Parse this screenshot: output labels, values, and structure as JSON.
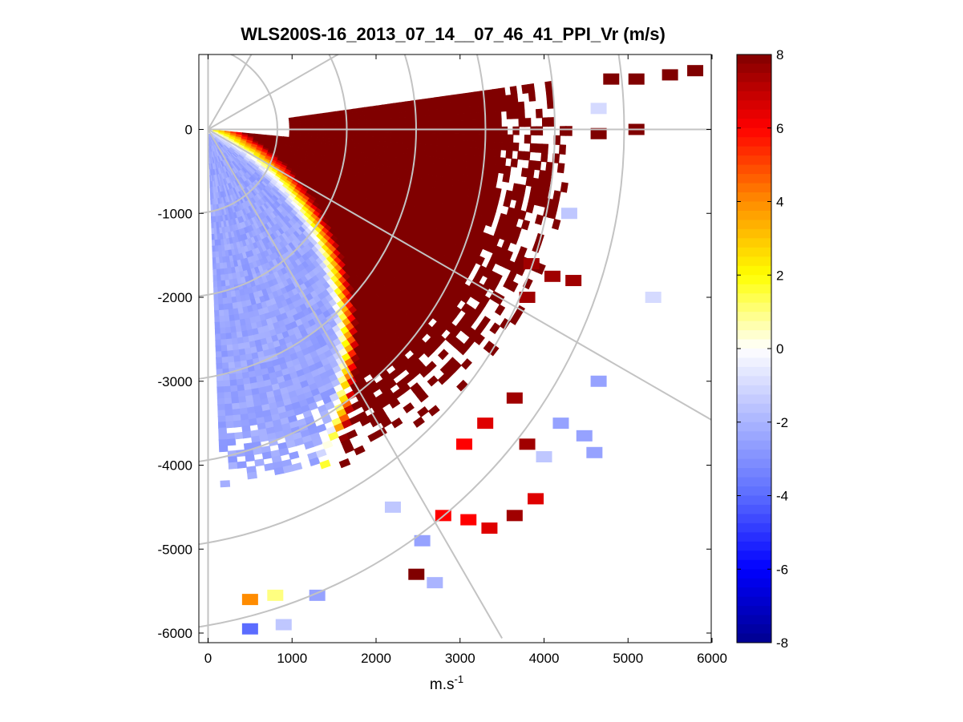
{
  "chart_data": {
    "type": "heatmap",
    "subtype": "polar-ppi-sector",
    "title": "WLS200S-16_2013_07_14__07_46_41_PPI_Vr (m/s)",
    "xlabel": "m.s",
    "xlabel_superscript": "-1",
    "ylabel": "",
    "xlim": [
      -100,
      6000
    ],
    "ylim": [
      -6100,
      1000
    ],
    "xticks": [
      0,
      1000,
      2000,
      3000,
      4000,
      5000,
      6000
    ],
    "xtick_labels": [
      "0",
      "1000",
      "2000",
      "3000",
      "4000",
      "5000",
      "6000"
    ],
    "yticks": [
      0,
      -1000,
      -2000,
      -3000,
      -4000,
      -5000,
      -6000
    ],
    "ytick_labels": [
      "0",
      "-1000",
      "-2000",
      "-3000",
      "-4000",
      "-5000",
      "-6000"
    ],
    "polar_grid": {
      "range_rings_m": [
        1000,
        2000,
        3000,
        4000,
        5000,
        6000
      ],
      "azimuth_spokes_deg": [
        -90,
        -60,
        -30,
        0,
        30,
        60,
        90
      ]
    },
    "sector": {
      "azimuth_start_deg": -88,
      "azimuth_end_deg": 8,
      "range_max_m": 6000
    },
    "colorbar": {
      "min": -8,
      "max": 8,
      "ticks": [
        8,
        6,
        4,
        2,
        0,
        -2,
        -4,
        -6,
        -8
      ],
      "tick_labels": [
        "8",
        "6",
        "4",
        "2",
        "0",
        "-2",
        "-4",
        "-6",
        "-8"
      ],
      "colors": [
        "#00008f",
        "#0000ff",
        "#5b6cff",
        "#aab4ff",
        "#ffffff",
        "#ffff00",
        "#ff8c00",
        "#ff0000",
        "#800000"
      ]
    },
    "field_description": {
      "units": "m/s",
      "negative_region": "near-south azimuths, short range, approx -1 to -2",
      "positive_region": "east and south-east azimuths, increasing with range from 0 to 8"
    },
    "sparse_cells": [
      {
        "x": 2480,
        "y": -5300,
        "v": 8
      },
      {
        "x": 2700,
        "y": -5400,
        "v": -2
      },
      {
        "x": 2550,
        "y": -4900,
        "v": -2.5
      },
      {
        "x": 2200,
        "y": -4500,
        "v": -1.5
      },
      {
        "x": 4650,
        "y": -3000,
        "v": -2.5
      },
      {
        "x": 5300,
        "y": -2000,
        "v": -1
      },
      {
        "x": 4650,
        "y": 250,
        "v": -1
      },
      {
        "x": 4200,
        "y": -3500,
        "v": -2.5
      },
      {
        "x": 4480,
        "y": -3650,
        "v": -2.5
      },
      {
        "x": 4600,
        "y": -3850,
        "v": -2.5
      },
      {
        "x": 4000,
        "y": -3900,
        "v": -1.5
      },
      {
        "x": 3800,
        "y": -3750,
        "v": 7.5
      },
      {
        "x": 3650,
        "y": -4600,
        "v": 7.5
      },
      {
        "x": 3900,
        "y": -4400,
        "v": 6.5
      },
      {
        "x": 1300,
        "y": -5550,
        "v": -2.5
      },
      {
        "x": 900,
        "y": -5900,
        "v": -1.5
      },
      {
        "x": 500,
        "y": -5950,
        "v": -4
      },
      {
        "x": 500,
        "y": -5600,
        "v": 4
      },
      {
        "x": 800,
        "y": -5550,
        "v": 1
      },
      {
        "x": 3350,
        "y": -4750,
        "v": 6.5
      },
      {
        "x": 3100,
        "y": -4650,
        "v": 6
      },
      {
        "x": 2800,
        "y": -4600,
        "v": 6
      },
      {
        "x": 5800,
        "y": 700,
        "v": 8
      },
      {
        "x": 5500,
        "y": 650,
        "v": 8
      },
      {
        "x": 5100,
        "y": 600,
        "v": 8
      },
      {
        "x": 4800,
        "y": 600,
        "v": 8
      },
      {
        "x": 5100,
        "y": 0,
        "v": 8
      },
      {
        "x": 4650,
        "y": -50,
        "v": 8
      },
      {
        "x": 4300,
        "y": -1000,
        "v": -1.5
      },
      {
        "x": 4100,
        "y": -1750,
        "v": 7.5
      },
      {
        "x": 4350,
        "y": -1800,
        "v": 7.5
      },
      {
        "x": 3850,
        "y": -1600,
        "v": 7.5
      },
      {
        "x": 3800,
        "y": -2000,
        "v": 7.5
      },
      {
        "x": 3650,
        "y": -3200,
        "v": 7.5
      },
      {
        "x": 3300,
        "y": -3500,
        "v": 6.5
      },
      {
        "x": 3050,
        "y": -3750,
        "v": 6
      }
    ]
  }
}
